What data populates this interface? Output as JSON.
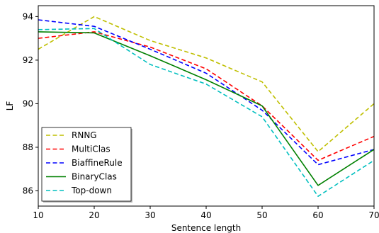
{
  "chart_data": {
    "type": "line",
    "title": "",
    "xlabel": "Sentence length",
    "ylabel": "LF",
    "x": [
      10,
      20,
      30,
      40,
      50,
      60,
      70
    ],
    "xlim": [
      10,
      70
    ],
    "ylim": [
      85.3,
      94.5
    ],
    "xticks": [
      "10",
      "20",
      "30",
      "40",
      "50",
      "60",
      "70"
    ],
    "yticks": [
      "86",
      "88",
      "90",
      "92",
      "94"
    ],
    "grid": false,
    "legend_placement": "lower-left",
    "series": [
      {
        "name": "RNNG",
        "color": "#bfbf00",
        "dash": "dashed",
        "values": [
          92.5,
          94.0,
          92.9,
          92.1,
          91.0,
          87.8,
          90.0
        ]
      },
      {
        "name": "MultiClas",
        "color": "#ff0000",
        "dash": "dashed",
        "values": [
          93.0,
          93.3,
          92.6,
          91.6,
          89.9,
          87.4,
          88.5
        ]
      },
      {
        "name": "BiaffineRule",
        "color": "#0000ff",
        "dash": "dashed",
        "values": [
          93.85,
          93.55,
          92.5,
          91.4,
          89.7,
          87.2,
          87.9
        ]
      },
      {
        "name": "BinaryClas",
        "color": "#008000",
        "dash": "solid",
        "values": [
          93.3,
          93.25,
          92.2,
          91.1,
          89.9,
          86.25,
          87.9
        ]
      },
      {
        "name": "Top-down",
        "color": "#00bfbf",
        "dash": "dashed",
        "values": [
          93.4,
          93.45,
          91.8,
          90.9,
          89.4,
          85.75,
          87.4
        ]
      }
    ]
  }
}
